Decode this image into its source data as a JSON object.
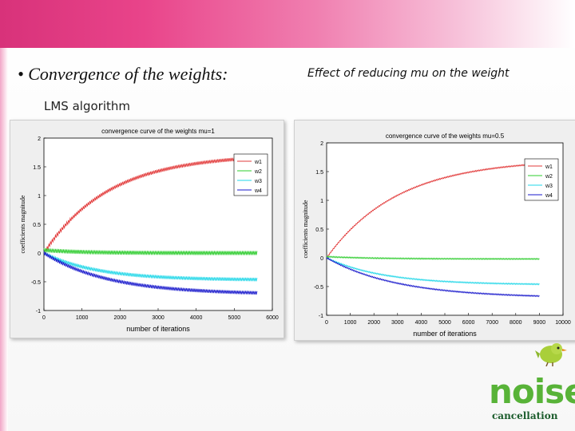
{
  "slide": {
    "title": "• Convergence of the weights:",
    "right_heading": "Effect of reducing mu on the weight",
    "left_subheading": "LMS algorithm"
  },
  "logo": {
    "word": "noise",
    "sub": "cancellation"
  },
  "colors": {
    "w1": "#e23b3b",
    "w2": "#2ecc2e",
    "w3": "#22d7e8",
    "w4": "#1a1acc",
    "accent": "#e9448a"
  },
  "chart_data": [
    {
      "type": "line",
      "title": "convergence curve of the weights mu=1",
      "xlabel": "number of iterations",
      "ylabel": "coefficients magnitude",
      "xlim": [
        0,
        6000
      ],
      "ylim": [
        -1,
        2
      ],
      "xticks": [
        0,
        1000,
        2000,
        3000,
        4000,
        5000,
        6000
      ],
      "yticks": [
        -1,
        -0.5,
        0,
        0.5,
        1,
        1.5,
        2
      ],
      "legend": "top-right",
      "x_end": 5600,
      "series": [
        {
          "name": "w1",
          "final": 1.72,
          "start": 0.0,
          "tau": 1700,
          "noise": 0.03
        },
        {
          "name": "w2",
          "final": 0.0,
          "start": 0.05,
          "tau": 1000,
          "noise": 0.035
        },
        {
          "name": "w3",
          "final": -0.47,
          "start": 0.0,
          "tau": 1400,
          "noise": 0.03
        },
        {
          "name": "w4",
          "final": -0.72,
          "start": 0.0,
          "tau": 1700,
          "noise": 0.03
        }
      ]
    },
    {
      "type": "line",
      "title": "convergence curve of the weights mu=0.5",
      "xlabel": "number of iterations",
      "ylabel": "coefficients magnitude",
      "xlim": [
        0,
        10000
      ],
      "ylim": [
        -1,
        2
      ],
      "xticks": [
        0,
        1000,
        2000,
        3000,
        4000,
        5000,
        6000,
        7000,
        8000,
        9000,
        10000
      ],
      "yticks": [
        -1,
        -0.5,
        0,
        0.5,
        1,
        1.5,
        2
      ],
      "legend": "top-right",
      "x_end": 9000,
      "series": [
        {
          "name": "w1",
          "final": 1.72,
          "start": 0.0,
          "tau": 3000,
          "noise": 0.01
        },
        {
          "name": "w2",
          "final": -0.02,
          "start": 0.02,
          "tau": 2000,
          "noise": 0.01
        },
        {
          "name": "w3",
          "final": -0.47,
          "start": 0.0,
          "tau": 2400,
          "noise": 0.01
        },
        {
          "name": "w4",
          "final": -0.7,
          "start": 0.0,
          "tau": 3000,
          "noise": 0.01
        }
      ]
    }
  ]
}
